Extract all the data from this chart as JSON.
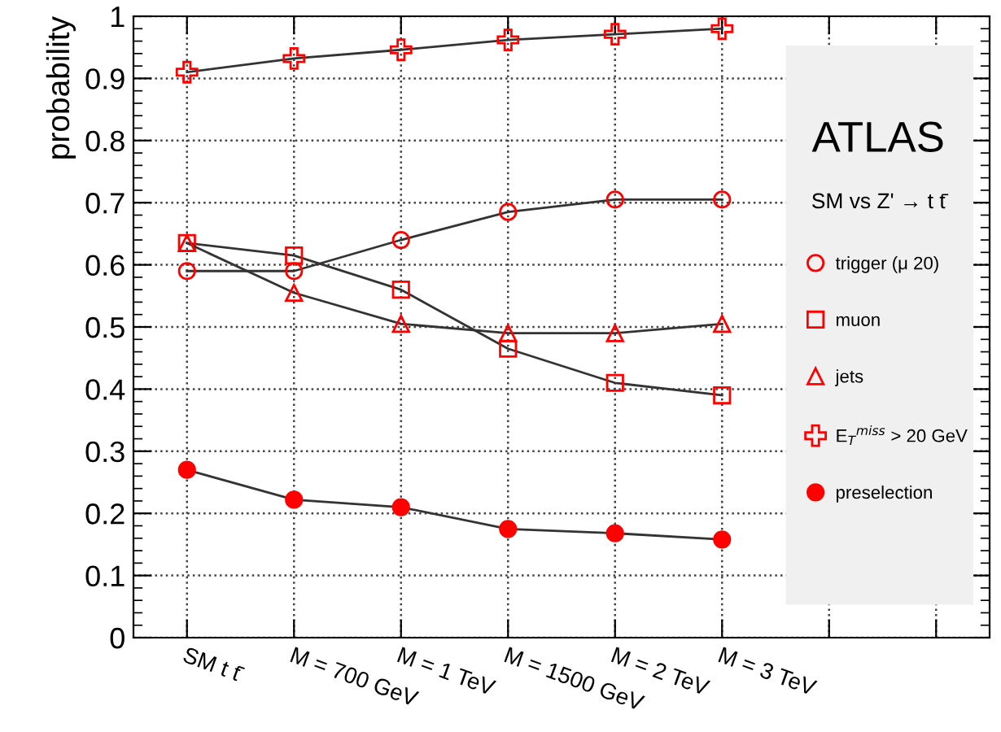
{
  "chart_data": {
    "type": "line",
    "title": "ATLAS",
    "subtitle": "SM vs Z' → t t̄",
    "ylabel": "probability",
    "categories": [
      "SM t t̄",
      "M = 700 GeV",
      "M = 1 TeV",
      "M = 1500 GeV",
      "M = 2 TeV",
      "M = 3 TeV",
      null,
      null
    ],
    "ylim": [
      0,
      1
    ],
    "yticks": [
      0,
      0.1,
      0.2,
      0.3,
      0.4,
      0.5,
      0.6,
      0.7,
      0.8,
      0.9,
      1
    ],
    "grid": true,
    "legend": "right",
    "line_style": "solid",
    "series": [
      {
        "name": "trigger (μ 20)",
        "color": "#ff0000",
        "marker": "circle",
        "values": [
          0.59,
          0.59,
          0.64,
          0.685,
          0.705,
          0.705,
          null,
          null
        ]
      },
      {
        "name": "muon",
        "color": "#ff0000",
        "marker": "square",
        "values": [
          0.635,
          0.615,
          0.56,
          0.465,
          0.41,
          0.39,
          null,
          null
        ]
      },
      {
        "name": "jets",
        "color": "#ff0000",
        "marker": "triangle",
        "values": [
          0.635,
          0.555,
          0.505,
          0.49,
          0.49,
          0.505,
          null,
          null
        ]
      },
      {
        "name": "E$_{T}$$^{miss}$ > 20 GeV",
        "color": "#ff0000",
        "marker": "cross",
        "values": [
          0.91,
          0.932,
          0.946,
          0.962,
          0.971,
          0.98,
          null,
          null
        ]
      },
      {
        "name": "preselection",
        "color": "#ff0000",
        "marker": "filled circle",
        "values": [
          0.27,
          0.222,
          0.21,
          0.175,
          0.168,
          0.158,
          null,
          null
        ]
      }
    ]
  }
}
